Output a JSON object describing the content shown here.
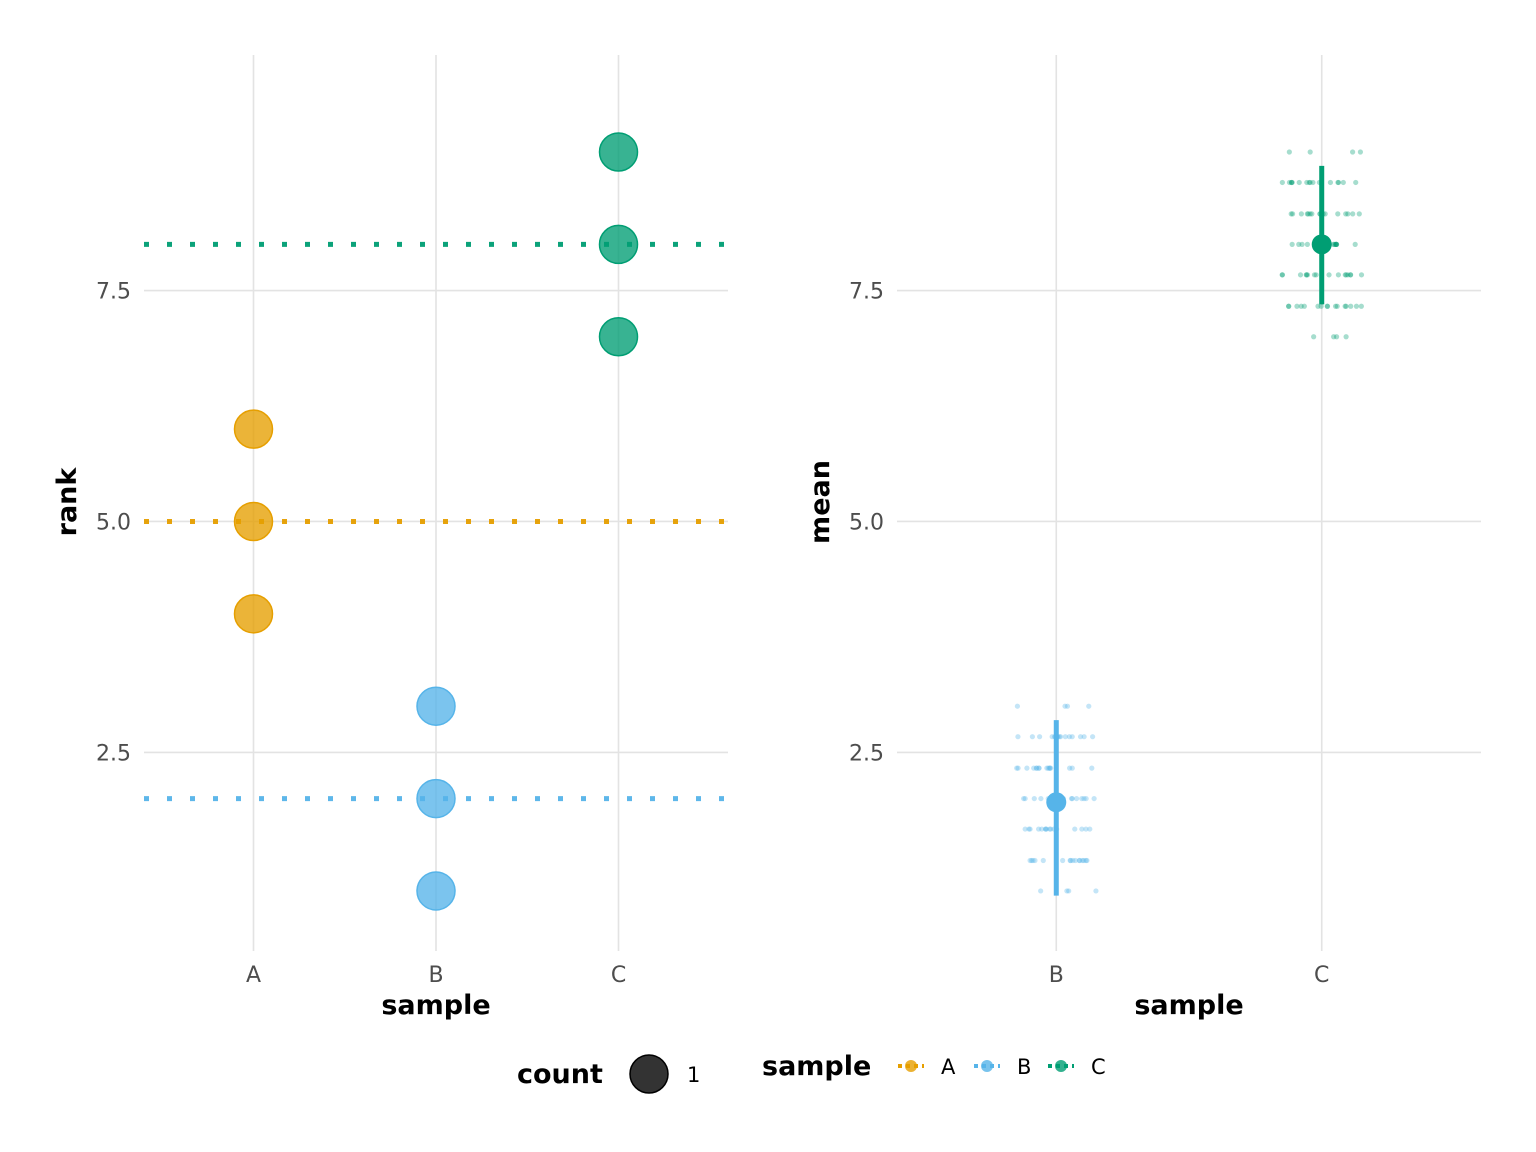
{
  "chart_data": [
    {
      "type": "scatter",
      "panel": "left",
      "xlabel": "sample",
      "ylabel": "rank",
      "categories": [
        "A",
        "B",
        "C"
      ],
      "ylim": [
        0.35,
        10.05
      ],
      "y_ticks": [
        "2.5",
        "5.0",
        "7.5"
      ],
      "y_tick_values": [
        2.5,
        5.0,
        7.5
      ],
      "series": [
        {
          "name": "A",
          "color": "#E69F00",
          "points": [
            {
              "x": "A",
              "y": 4
            },
            {
              "x": "A",
              "y": 5
            },
            {
              "x": "A",
              "y": 6
            }
          ],
          "mean_line": 5
        },
        {
          "name": "B",
          "color": "#56B4E9",
          "points": [
            {
              "x": "B",
              "y": 1
            },
            {
              "x": "B",
              "y": 2
            },
            {
              "x": "B",
              "y": 3
            }
          ],
          "mean_line": 2
        },
        {
          "name": "C",
          "color": "#009E73",
          "points": [
            {
              "x": "C",
              "y": 7
            },
            {
              "x": "C",
              "y": 8
            },
            {
              "x": "C",
              "y": 9
            }
          ],
          "mean_line": 8
        }
      ]
    },
    {
      "type": "pointrange",
      "panel": "right",
      "xlabel": "sample",
      "ylabel": "mean",
      "categories": [
        "B",
        "C"
      ],
      "ylim": [
        0.35,
        10.05
      ],
      "y_ticks": [
        "2.5",
        "5.0",
        "7.5"
      ],
      "y_tick_values": [
        2.5,
        5.0,
        7.5
      ],
      "series": [
        {
          "name": "B",
          "color": "#56B4E9",
          "mean": 1.96,
          "lower": 0.95,
          "upper": 2.85,
          "bootstrap_levels": [
            1.0,
            1.33,
            1.67,
            2.0,
            2.33,
            2.67,
            3.0
          ]
        },
        {
          "name": "C",
          "color": "#009E73",
          "mean": 8.0,
          "lower": 7.35,
          "upper": 8.85,
          "bootstrap_levels": [
            7.0,
            7.33,
            7.67,
            8.0,
            8.33,
            8.67,
            9.0
          ]
        }
      ]
    }
  ],
  "legend": {
    "count": {
      "title": "count",
      "label": "1",
      "color": "#000000"
    },
    "sample": {
      "title": "sample",
      "entries": [
        {
          "label": "A",
          "color": "#E69F00"
        },
        {
          "label": "B",
          "color": "#56B4E9"
        },
        {
          "label": "C",
          "color": "#009E73"
        }
      ]
    }
  }
}
